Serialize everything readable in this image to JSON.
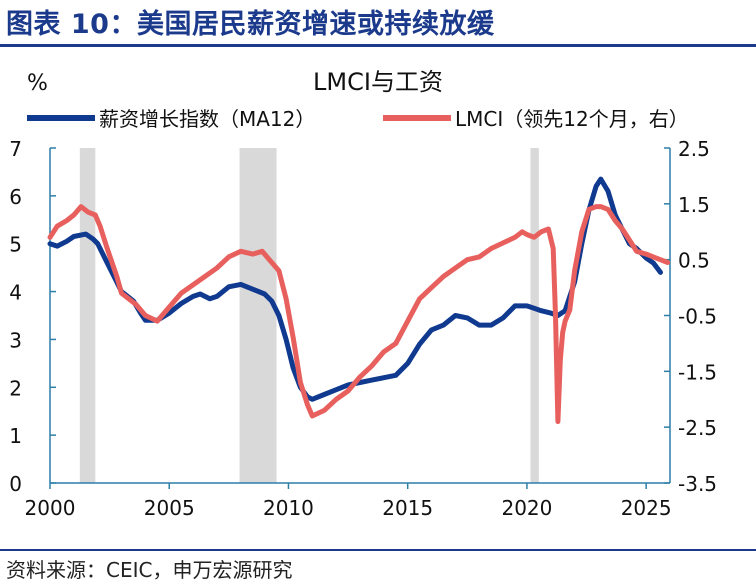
{
  "heading": "图表 10：美国居民薪资增速或持续放缓",
  "source": "资料来源：CEIC，申万宏源研究",
  "chart_data": {
    "type": "line",
    "title": "LMCI与工资",
    "left_unit": "%",
    "xlim": [
      2000,
      2026
    ],
    "x_ticks": [
      2000,
      2005,
      2010,
      2015,
      2020,
      2025
    ],
    "left_axis": {
      "ylim": [
        0,
        7
      ],
      "ticks": [
        0,
        1,
        2,
        3,
        4,
        5,
        6,
        7
      ]
    },
    "right_axis": {
      "ylim": [
        -3.5,
        2.5
      ],
      "ticks": [
        -3.5,
        -2.5,
        -1.5,
        -0.5,
        0.5,
        1.5,
        2.5
      ]
    },
    "recessions": [
      [
        2001.25,
        2001.9
      ],
      [
        2007.95,
        2009.5
      ],
      [
        2020.15,
        2020.5
      ]
    ],
    "legend_position": "top",
    "colors": {
      "wage": "#103a8f",
      "lmci": "#e8605e",
      "recession": "#d9d9d9",
      "axis": "#2d7fa8"
    },
    "series": [
      {
        "name": "薪资增长指数（MA12）",
        "axis": "left",
        "color": "#103a8f",
        "x": [
          2000,
          2000.3,
          2000.7,
          2001,
          2001.5,
          2001.8,
          2002,
          2002.4,
          2002.8,
          2003,
          2003.5,
          2003.8,
          2004,
          2004.5,
          2005,
          2005.5,
          2006,
          2006.3,
          2006.7,
          2007,
          2007.5,
          2008,
          2008.5,
          2009,
          2009.3,
          2009.6,
          2009.9,
          2010.2,
          2010.5,
          2010.8,
          2011,
          2011.5,
          2012,
          2012.5,
          2013,
          2013.5,
          2014,
          2014.5,
          2015,
          2015.5,
          2016,
          2016.5,
          2017,
          2017.5,
          2018,
          2018.5,
          2019,
          2019.5,
          2020,
          2020.3,
          2020.6,
          2021,
          2021.3,
          2021.6,
          2022,
          2022.3,
          2022.6,
          2022.9,
          2023.1,
          2023.4,
          2023.7,
          2024,
          2024.3,
          2024.6,
          2025,
          2025.3,
          2025.6
        ],
        "y": [
          5.0,
          4.95,
          5.05,
          5.15,
          5.2,
          5.1,
          5.0,
          4.6,
          4.2,
          4.0,
          3.8,
          3.55,
          3.4,
          3.4,
          3.55,
          3.75,
          3.9,
          3.95,
          3.85,
          3.9,
          4.1,
          4.15,
          4.05,
          3.95,
          3.8,
          3.5,
          3.0,
          2.4,
          2.0,
          1.8,
          1.75,
          1.85,
          1.95,
          2.05,
          2.1,
          2.15,
          2.2,
          2.25,
          2.5,
          2.9,
          3.2,
          3.3,
          3.5,
          3.45,
          3.3,
          3.3,
          3.45,
          3.7,
          3.7,
          3.65,
          3.6,
          3.55,
          3.5,
          3.6,
          4.2,
          5.0,
          5.7,
          6.2,
          6.35,
          6.1,
          5.6,
          5.3,
          5.0,
          4.9,
          4.7,
          4.6,
          4.4
        ]
      },
      {
        "name": "LMCI（领先12个月，右）",
        "axis": "right",
        "color": "#e8605e",
        "x": [
          2000,
          2000.3,
          2000.7,
          2001,
          2001.3,
          2001.6,
          2001.9,
          2002.1,
          2002.4,
          2002.8,
          2003,
          2003.3,
          2003.6,
          2004,
          2004.5,
          2005,
          2005.5,
          2006,
          2006.5,
          2007,
          2007.5,
          2008,
          2008.5,
          2008.9,
          2009.2,
          2009.6,
          2009.9,
          2010.2,
          2010.5,
          2010.8,
          2011,
          2011.5,
          2012,
          2012.5,
          2013,
          2013.5,
          2014,
          2014.5,
          2015,
          2015.5,
          2016,
          2016.5,
          2017,
          2017.5,
          2018,
          2018.5,
          2019,
          2019.5,
          2019.8,
          2020,
          2020.3,
          2020.6,
          2020.9,
          2021.1,
          2021.2,
          2021.3,
          2021.4,
          2021.5,
          2021.6,
          2021.8,
          2022,
          2022.3,
          2022.6,
          2022.9,
          2023.1,
          2023.4,
          2023.7,
          2024,
          2024.3,
          2024.6,
          2025,
          2025.3,
          2025.6,
          2025.9
        ],
        "y": [
          0.9,
          1.1,
          1.2,
          1.3,
          1.45,
          1.35,
          1.3,
          1.1,
          0.7,
          0.2,
          -0.1,
          -0.2,
          -0.3,
          -0.5,
          -0.6,
          -0.35,
          -0.1,
          0.05,
          0.2,
          0.35,
          0.55,
          0.65,
          0.6,
          0.65,
          0.5,
          0.3,
          -0.2,
          -0.9,
          -1.7,
          -2.1,
          -2.3,
          -2.2,
          -2.0,
          -1.85,
          -1.6,
          -1.4,
          -1.15,
          -1.0,
          -0.6,
          -0.2,
          0.0,
          0.2,
          0.35,
          0.5,
          0.55,
          0.7,
          0.8,
          0.9,
          1.0,
          0.95,
          0.9,
          1.0,
          1.05,
          0.7,
          -0.5,
          -2.4,
          -1.3,
          -0.8,
          -0.6,
          -0.4,
          0.3,
          1.0,
          1.4,
          1.45,
          1.45,
          1.4,
          1.2,
          1.05,
          0.85,
          0.65,
          0.6,
          0.55,
          0.5,
          0.45
        ]
      }
    ]
  }
}
